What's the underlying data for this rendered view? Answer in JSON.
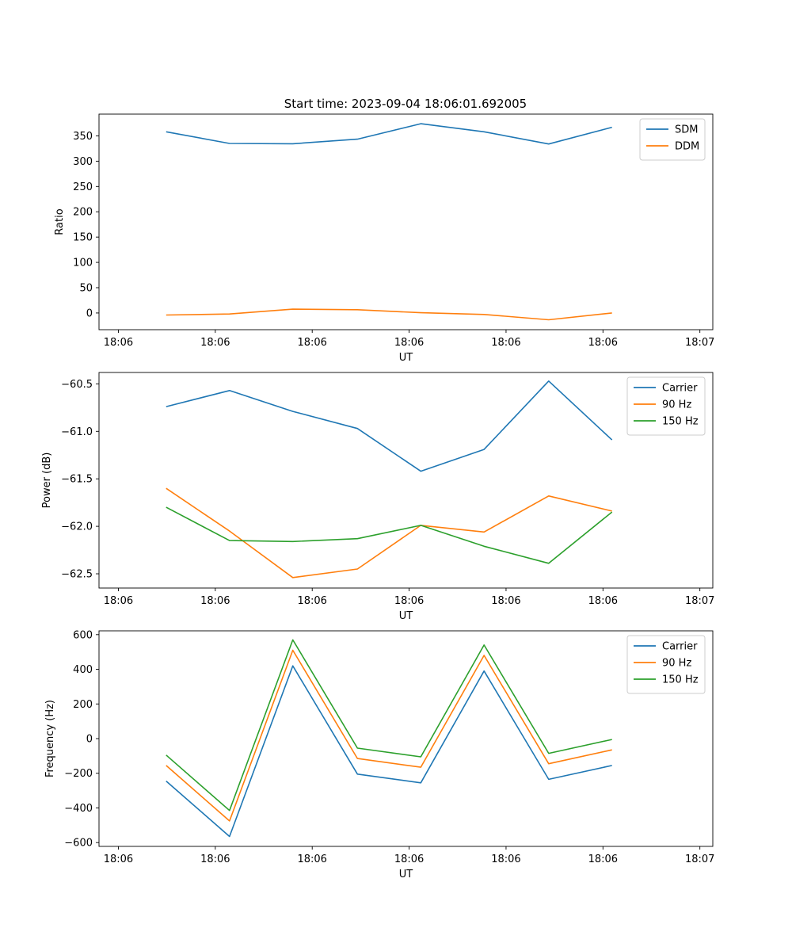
{
  "figure_title": "Start time: 2023-09-04 18:06:01.692005",
  "colors": {
    "blue": "#1f77b4",
    "orange": "#ff7f0e",
    "green": "#2ca02c"
  },
  "chart_data": [
    {
      "type": "line",
      "title": "Start time: 2023-09-04 18:06:01.692005",
      "xlabel": "UT",
      "ylabel": "Ratio",
      "xlim": [
        -0.3,
        9.2
      ],
      "ylim": [
        -33,
        393
      ],
      "x_tick_values": [
        0,
        1.5,
        3,
        4.5,
        6,
        7.5,
        9
      ],
      "x_tick_labels": [
        "18:06",
        "18:06",
        "18:06",
        "18:06",
        "18:06",
        "18:06",
        "18:07"
      ],
      "y_ticks": [
        0,
        50,
        100,
        150,
        200,
        250,
        300,
        350
      ],
      "x": [
        0.74,
        1.72,
        2.7,
        3.7,
        4.68,
        5.66,
        6.66,
        7.64
      ],
      "legend": "top-right",
      "series": [
        {
          "name": "SDM",
          "color": "#1f77b4",
          "values": [
            358,
            335,
            334.5,
            343.5,
            374,
            358,
            334,
            367
          ]
        },
        {
          "name": "DDM",
          "color": "#ff7f0e",
          "values": [
            -4,
            -2,
            7.5,
            6.5,
            0.5,
            -3,
            -13.5,
            0
          ]
        }
      ]
    },
    {
      "type": "line",
      "title": "",
      "xlabel": "UT",
      "ylabel": "Power (dB)",
      "xlim": [
        -0.3,
        9.2
      ],
      "ylim": [
        -62.65,
        -60.38
      ],
      "x_tick_values": [
        0,
        1.5,
        3,
        4.5,
        6,
        7.5,
        9
      ],
      "x_tick_labels": [
        "18:06",
        "18:06",
        "18:06",
        "18:06",
        "18:06",
        "18:06",
        "18:07"
      ],
      "y_ticks": [
        -62.5,
        -62.0,
        -61.5,
        -61.0,
        -60.5
      ],
      "y_tick_labels": [
        "−62.5",
        "−62.0",
        "−61.5",
        "−61.0",
        "−60.5"
      ],
      "x": [
        0.74,
        1.72,
        2.7,
        3.7,
        4.68,
        5.66,
        6.66,
        7.64
      ],
      "legend": "top-right",
      "series": [
        {
          "name": "Carrier",
          "color": "#1f77b4",
          "values": [
            -60.74,
            -60.57,
            -60.79,
            -60.97,
            -61.42,
            -61.19,
            -60.47,
            -61.09
          ]
        },
        {
          "name": "90 Hz",
          "color": "#ff7f0e",
          "values": [
            -61.6,
            -62.05,
            -62.54,
            -62.45,
            -61.99,
            -62.06,
            -61.68,
            -61.84
          ]
        },
        {
          "name": "150 Hz",
          "color": "#2ca02c",
          "values": [
            -61.8,
            -62.15,
            -62.16,
            -62.13,
            -61.99,
            -62.21,
            -62.39,
            -61.85
          ]
        }
      ]
    },
    {
      "type": "line",
      "title": "",
      "xlabel": "UT",
      "ylabel": "Frequency (Hz)",
      "xlim": [
        -0.3,
        9.2
      ],
      "ylim": [
        -622,
        622
      ],
      "x_tick_values": [
        0,
        1.5,
        3,
        4.5,
        6,
        7.5,
        9
      ],
      "x_tick_labels": [
        "18:06",
        "18:06",
        "18:06",
        "18:06",
        "18:06",
        "18:06",
        "18:07"
      ],
      "y_ticks": [
        -600,
        -400,
        -200,
        0,
        200,
        400,
        600
      ],
      "y_tick_labels": [
        "−600",
        "−400",
        "−200",
        "0",
        "200",
        "400",
        "600"
      ],
      "x": [
        0.74,
        1.72,
        2.7,
        3.7,
        4.68,
        5.66,
        6.66,
        7.64
      ],
      "legend": "top-right",
      "series": [
        {
          "name": "Carrier",
          "color": "#1f77b4",
          "values": [
            -245,
            -565,
            420,
            -205,
            -255,
            390,
            -235,
            -155
          ]
        },
        {
          "name": "90 Hz",
          "color": "#ff7f0e",
          "values": [
            -155,
            -475,
            510,
            -115,
            -165,
            480,
            -145,
            -65
          ]
        },
        {
          "name": "150 Hz",
          "color": "#2ca02c",
          "values": [
            -95,
            -415,
            570,
            -55,
            -105,
            540,
            -85,
            -5
          ]
        }
      ]
    }
  ]
}
